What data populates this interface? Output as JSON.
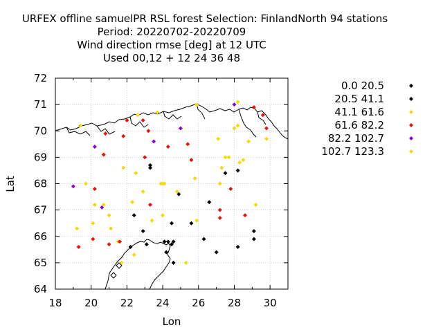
{
  "chart_data": {
    "type": "scatter",
    "title_lines": [
      "URFEX offline samuelPR RSL forest   Selection: FinlandNorth     94 stations",
      "Period: 20220702-20220709",
      "Wind direction rmse [deg] at  12 UTC",
      "Used  00,12  + 12 24 36 48"
    ],
    "xlabel": "Lon",
    "ylabel": "Lat",
    "xlim": [
      18,
      31
    ],
    "ylim": [
      64,
      72
    ],
    "xticks": [
      "18",
      "20",
      "22",
      "24",
      "26",
      "28",
      "30"
    ],
    "yticks": [
      "64",
      "65",
      "66",
      "67",
      "68",
      "69",
      "70",
      "71",
      "72"
    ],
    "grid": true,
    "legend_position": "right",
    "series": [
      {
        "name": "0.0 20.5",
        "color": "#000000",
        "points": [
          [
            23.3,
            68.7
          ],
          [
            23.3,
            68.6
          ],
          [
            24.9,
            67.6
          ],
          [
            27.5,
            68.4
          ],
          [
            28.2,
            68.5
          ],
          [
            26.6,
            67.3
          ],
          [
            22.4,
            66.8
          ],
          [
            22.9,
            66.2
          ],
          [
            24.5,
            66.5
          ],
          [
            25.6,
            66.5
          ],
          [
            23.1,
            65.7
          ],
          [
            24.1,
            65.8
          ],
          [
            24.3,
            65.8
          ],
          [
            24.5,
            65.7
          ],
          [
            24.6,
            65.8
          ],
          [
            26.3,
            65.9
          ],
          [
            27.0,
            65.4
          ],
          [
            28.2,
            65.6
          ],
          [
            29.1,
            66.2
          ],
          [
            29.1,
            65.9
          ],
          [
            24.2,
            65.4
          ],
          [
            24.6,
            65.0
          ],
          [
            22.2,
            65.6
          ]
        ]
      },
      {
        "name": "20.5 41.1",
        "color": "#000000",
        "points": []
      },
      {
        "name": "41.1 61.6",
        "color": "#f5d90a",
        "points": [
          [
            19.4,
            70.2
          ],
          [
            22.6,
            70.6
          ],
          [
            23.7,
            70.7
          ],
          [
            25.9,
            71.0
          ],
          [
            28.2,
            71.1
          ],
          [
            28.2,
            70.2
          ],
          [
            28.0,
            70.1
          ],
          [
            29.8,
            69.7
          ],
          [
            27.1,
            69.7
          ],
          [
            28.8,
            69.6
          ],
          [
            27.7,
            69.0
          ],
          [
            27.5,
            69.0
          ],
          [
            28.5,
            68.9
          ],
          [
            28.3,
            68.8
          ],
          [
            27.3,
            68.6
          ],
          [
            21.8,
            68.6
          ],
          [
            22.5,
            68.4
          ],
          [
            27.2,
            68.0
          ],
          [
            25.8,
            68.2
          ],
          [
            24.0,
            68.0
          ],
          [
            24.1,
            68.0
          ],
          [
            23.9,
            68.0
          ],
          [
            19.7,
            68.0
          ],
          [
            20.2,
            67.2
          ],
          [
            22.9,
            67.7
          ],
          [
            24.8,
            67.7
          ],
          [
            22.3,
            67.3
          ],
          [
            24.0,
            66.8
          ],
          [
            23.4,
            66.6
          ],
          [
            20.7,
            67.2
          ],
          [
            21.0,
            66.8
          ],
          [
            21.1,
            66.3
          ],
          [
            29.2,
            67.2
          ],
          [
            25.9,
            66.6
          ],
          [
            19.2,
            66.3
          ],
          [
            20.1,
            66.5
          ],
          [
            22.4,
            65.3
          ],
          [
            21.7,
            65.0
          ],
          [
            25.3,
            65.0
          ],
          [
            21.5,
            65.8
          ]
        ]
      },
      {
        "name": "61.6 82.2",
        "color": "#e3140c",
        "points": [
          [
            22.0,
            70.4
          ],
          [
            22.9,
            70.4
          ],
          [
            23.2,
            70.0
          ],
          [
            20.8,
            69.9
          ],
          [
            21.8,
            69.8
          ],
          [
            24.3,
            69.4
          ],
          [
            25.4,
            69.5
          ],
          [
            29.1,
            70.9
          ],
          [
            29.6,
            70.6
          ],
          [
            29.8,
            70.1
          ],
          [
            23.0,
            69.0
          ],
          [
            20.7,
            69.1
          ],
          [
            25.6,
            68.9
          ],
          [
            27.8,
            67.8
          ],
          [
            20.2,
            67.8
          ],
          [
            23.3,
            67.2
          ],
          [
            27.2,
            67.0
          ],
          [
            27.2,
            66.7
          ],
          [
            28.6,
            66.8
          ],
          [
            20.1,
            65.9
          ],
          [
            19.3,
            65.6
          ],
          [
            21.0,
            65.7
          ],
          [
            21.6,
            65.8
          ]
        ]
      },
      {
        "name": "82.2 102.7",
        "color": "#9400d3",
        "points": [
          [
            20.2,
            69.4
          ],
          [
            23.5,
            69.6
          ],
          [
            25.0,
            70.1
          ],
          [
            28.0,
            71.0
          ],
          [
            19.0,
            67.9
          ],
          [
            20.6,
            67.1
          ]
        ]
      },
      {
        "name": "102.7 123.3",
        "color": "#f5d90a",
        "points": []
      }
    ]
  }
}
